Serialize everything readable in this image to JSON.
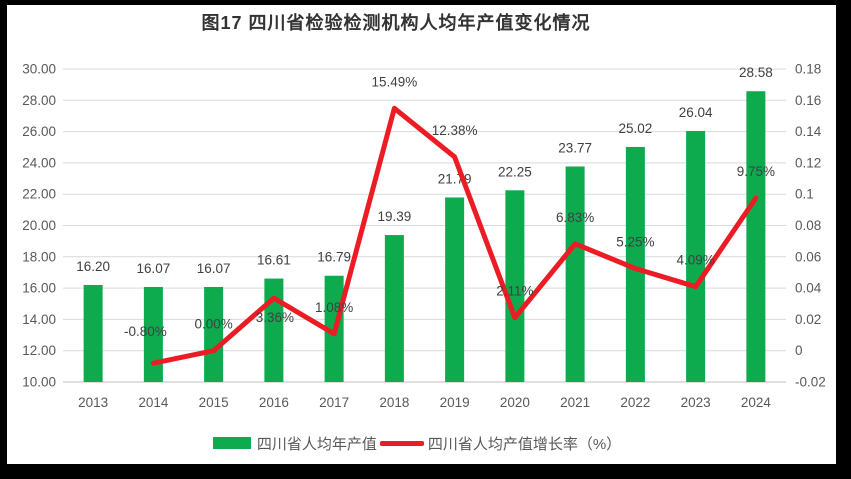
{
  "figure_title": "图17  四川省检验检测机构人均年产值变化情况",
  "chart_data": {
    "type": "bar+line",
    "title": "图17  四川省检验检测机构人均年产值变化情况",
    "categories": [
      "2013",
      "2014",
      "2015",
      "2016",
      "2017",
      "2018",
      "2019",
      "2020",
      "2021",
      "2022",
      "2023",
      "2024"
    ],
    "series": [
      {
        "name": "四川省人均年产值",
        "type": "bar",
        "axis": "left",
        "color": "#0dab4e",
        "values": [
          16.2,
          16.07,
          16.07,
          16.61,
          16.79,
          19.39,
          21.79,
          22.25,
          23.77,
          25.02,
          26.04,
          28.58
        ],
        "labels": [
          "16.20",
          "16.07",
          "16.07",
          "16.61",
          "16.79",
          "19.39",
          "21.79",
          "22.25",
          "23.77",
          "25.02",
          "26.04",
          "28.58"
        ]
      },
      {
        "name": "四川省人均产值增长率（%）",
        "type": "line",
        "axis": "right",
        "color": "#ec1c24",
        "values": [
          null,
          -0.008,
          0.0,
          0.0336,
          0.0108,
          0.1549,
          0.1238,
          0.0211,
          0.0683,
          0.0525,
          0.0409,
          0.0975
        ],
        "labels": [
          null,
          "-0.80%",
          "0.00%",
          "3.36%",
          "1.08%",
          "15.49%",
          "12.38%",
          "2.11%",
          "6.83%",
          "5.25%",
          "4.09%",
          "9.75%"
        ]
      }
    ],
    "left_axis": {
      "min": 10,
      "max": 30,
      "step": 2,
      "tick_labels": [
        "10.00",
        "12.00",
        "14.00",
        "16.00",
        "18.00",
        "20.00",
        "22.00",
        "24.00",
        "26.00",
        "28.00",
        "30.00"
      ]
    },
    "right_axis": {
      "min": -0.02,
      "max": 0.18,
      "step": 0.02,
      "tick_labels": [
        "-0.02",
        "0",
        "0.02",
        "0.04",
        "0.06",
        "0.08",
        "0.1",
        "0.12",
        "0.14",
        "0.16",
        "0.18"
      ]
    },
    "legend_position": "bottom",
    "grid": true,
    "colors": {
      "grid_line": "#d9d9d9",
      "axis_line": "#bfbfbf",
      "tick_text": "#595959",
      "data_label_text": "#404040"
    },
    "layout_hints": {
      "bar_label_dy": -14,
      "line_label_default_offset": [
        0,
        -27
      ],
      "line_label_offsets": {
        "2014": [
          -8,
          -32
        ],
        "2016": [
          1,
          19
        ]
      }
    }
  }
}
